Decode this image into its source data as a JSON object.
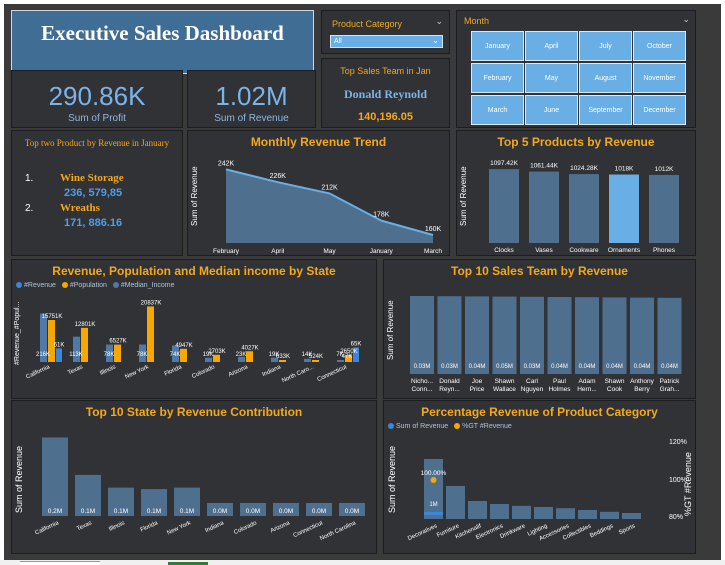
{
  "title": "Executive Sales Dashboard",
  "kpis": {
    "profit_value": "290.86K",
    "profit_label": "Sum of Profit",
    "revenue_value": "1.02M",
    "revenue_label": "Sum of Revenue"
  },
  "product_category": {
    "label": "Product Category",
    "selected": "All"
  },
  "top_team": {
    "title": "Top Sales Team in Jan",
    "name": "Donald Reynold",
    "value": "140,196.05"
  },
  "month_slicer": {
    "label": "Month",
    "months": [
      "January",
      "April",
      "July",
      "October",
      "February",
      "May",
      "August",
      "November",
      "March",
      "June",
      "September",
      "December"
    ]
  },
  "top_two_products": {
    "title": "Top two Product by Revenue in January",
    "items": [
      {
        "rank": "1.",
        "name": "Wine Storage",
        "value": "236, 579,85"
      },
      {
        "rank": "2.",
        "name": "Wreaths",
        "value": "171, 886.16"
      }
    ]
  },
  "monthly_trend": {
    "title": "Monthly Revenue Trend",
    "ylabel": "Sum of Revenue",
    "categories": [
      "February",
      "April",
      "May",
      "January",
      "March"
    ],
    "labels": [
      "242K",
      "226K",
      "212K",
      "178K",
      "160K"
    ],
    "values": [
      242,
      226,
      212,
      178,
      160
    ]
  },
  "top5_products": {
    "title": "Top 5 Products by Revenue",
    "ylabel": "Sum of Revenue",
    "categories": [
      "Clocks",
      "Vases",
      "Cookware",
      "Ornaments",
      "Phones"
    ],
    "labels": [
      "1097.42K",
      "1061.44K",
      "1024.28K",
      "1018K",
      "1012K"
    ],
    "values": [
      1097.42,
      1061.44,
      1024.28,
      1018,
      1012
    ]
  },
  "state_combo": {
    "title": "Revenue, Population and Median income by State",
    "ylabel": "#Revenue_#Popul...",
    "legend": [
      "#Revenue",
      "#Population",
      "#Median_Income"
    ],
    "states": [
      "California",
      "Texas",
      "Illinois",
      "New York",
      "Florida",
      "Colorado",
      "Arizona",
      "Indiana",
      "North Caro...",
      "Connecticut"
    ],
    "revenue": [
      216,
      113,
      78,
      78,
      74,
      19,
      23,
      19,
      14,
      7
    ],
    "revenue_labels": [
      "216K",
      "113K",
      "78K",
      "78K",
      "74K",
      "19K",
      "23K",
      "19K",
      "14K",
      "7K"
    ],
    "population": [
      15751,
      12801,
      6527,
      20837,
      4947,
      2703,
      4027,
      633,
      524,
      2650
    ],
    "population_labels": [
      "15751K",
      "12801K",
      "6527K",
      "20837K",
      "4947K",
      "2703K",
      "4027K",
      "633K",
      "524K",
      "2650K"
    ],
    "median": [
      61,
      0,
      0,
      0,
      0,
      0,
      0,
      0,
      0,
      65
    ],
    "median_labels": [
      "61K",
      "",
      "",
      "",
      "",
      "",
      "",
      "",
      "",
      "65K"
    ],
    "extra_label": "47K"
  },
  "top10_teams": {
    "title": "Top 10 Sales Team by Revenue",
    "ylabel": "Sum of Revenue",
    "categories": [
      "Nicho... Conn...",
      "Donald Reyn...",
      "Joe Price",
      "Shawn Wallace",
      "Carl Nguyen",
      "Paul Holmes",
      "Adam Hern...",
      "Shawn Cook",
      "Anthony Berry",
      "Patrick Grah..."
    ],
    "labels": [
      "0.03M",
      "0.03M",
      "0.04M",
      "0.05M",
      "0.03M",
      "0.04M",
      "0.04M",
      "0.04M",
      "0.04M",
      "0.04M"
    ],
    "values": [
      0.03,
      0.03,
      0.04,
      0.05,
      0.03,
      0.04,
      0.04,
      0.04,
      0.04,
      0.04
    ]
  },
  "top10_states": {
    "title": "Top 10 State by Revenue Contribution",
    "ylabel": "Sum of Revenue",
    "categories": [
      "California",
      "Texas",
      "Illinois",
      "Florida",
      "New York",
      "Indiana",
      "Colorado",
      "Arizona",
      "Connecticut",
      "North Carolina"
    ],
    "labels": [
      "0.2M",
      "0.1M",
      "0.1M",
      "0.1M",
      "0.1M",
      "0.0M",
      "0.0M",
      "0.0M",
      "0.0M",
      "0.0M"
    ],
    "values": [
      0.216,
      0.113,
      0.078,
      0.074,
      0.078,
      0.019,
      0.019,
      0.023,
      0.007,
      0.014
    ]
  },
  "pct_category": {
    "title": "Percentage Revenue of Product Category",
    "ylabel": "Sum of Revenue",
    "y2label": "%GT #Revenue",
    "legend": [
      "Sum of Revenue",
      "%GT #Revenue"
    ],
    "y2_ticks": [
      "120%",
      "100%",
      "80%"
    ],
    "categories": [
      "Decoratives",
      "Furniture",
      "Kitchenalif",
      "Electronics",
      "Drinkware",
      "Lighting",
      "Accessories",
      "Collectibles",
      "Beddings",
      "Sports"
    ],
    "values": [
      1,
      0.55,
      0.3,
      0.25,
      0.22,
      0.2,
      0.18,
      0.15,
      0.12,
      0.1
    ],
    "bar_label": "1M",
    "pct_label": "100.00%"
  },
  "colors": {
    "accent": "#f3a81c",
    "bar": "#4f6f8f",
    "bar_sel": "#6aaee6",
    "blue": "#3a87d8",
    "orange": "#f6a800"
  }
}
